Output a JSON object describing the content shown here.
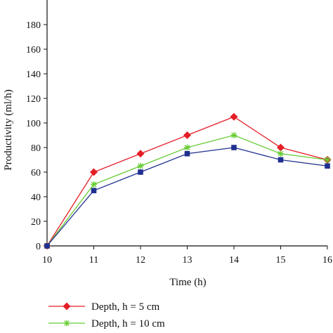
{
  "chart_data": {
    "type": "line",
    "xlabel": "Time (h)",
    "ylabel": "Productivity (ml/h)",
    "xlim": [
      10,
      16
    ],
    "ylim": [
      0,
      200
    ],
    "x_ticks": [
      10,
      11,
      12,
      13,
      14,
      15,
      16
    ],
    "y_ticks": [
      0,
      20,
      40,
      60,
      80,
      100,
      120,
      140,
      160,
      180
    ],
    "x": [
      10,
      11,
      12,
      13,
      14,
      15,
      16
    ],
    "grid": false,
    "legend_position": "bottom-left",
    "series": [
      {
        "name": "Depth, h = 5 cm",
        "color": "#e41e26",
        "marker": "diamond",
        "values": [
          0,
          60,
          75,
          90,
          105,
          80,
          70
        ]
      },
      {
        "name": "Depth, h = 10 cm",
        "color": "#66cc33",
        "marker": "star",
        "values": [
          0,
          50,
          65,
          80,
          90,
          75,
          70
        ]
      },
      {
        "color": "#1f2f8f",
        "marker": "square",
        "values": [
          0,
          45,
          60,
          75,
          80,
          70,
          65
        ]
      }
    ]
  }
}
